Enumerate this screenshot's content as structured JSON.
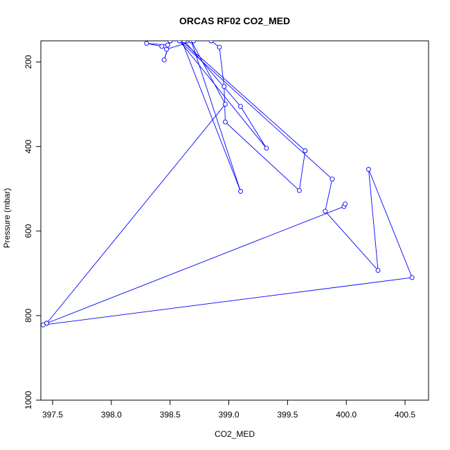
{
  "chart_data": {
    "type": "line",
    "title": "ORCAS RF02 CO2_MED",
    "xlabel": "CO2_MED",
    "ylabel": "Pressure (mbar)",
    "xlim": [
      397.4,
      400.7
    ],
    "ylim": [
      1000,
      150
    ],
    "y_reversed": true,
    "grid": false,
    "legend": "none",
    "x_ticks": [
      397.5,
      398.0,
      398.5,
      399.0,
      399.5,
      400.0,
      400.5
    ],
    "x_tick_labels": [
      "397.5",
      "398.0",
      "398.5",
      "399.0",
      "399.5",
      "400.0",
      "400.5"
    ],
    "y_ticks": [
      200,
      400,
      600,
      800,
      1000
    ],
    "y_tick_labels": [
      "200",
      "400",
      "600",
      "800",
      "1000"
    ],
    "line_color": "#0000ff",
    "marker": "open-circle",
    "series": [
      {
        "points": [
          [
            397.45,
            818
          ],
          [
            398.97,
            300
          ],
          [
            398.68,
            150
          ],
          [
            399.1,
            506
          ],
          [
            398.6,
            150
          ],
          [
            399.65,
            410
          ],
          [
            399.6,
            504
          ],
          [
            398.97,
            342
          ],
          [
            398.96,
            258
          ],
          [
            398.92,
            165
          ],
          [
            398.85,
            150
          ],
          [
            398.7,
            150
          ],
          [
            398.47,
            170
          ],
          [
            398.43,
            163
          ],
          [
            398.3,
            156
          ],
          [
            398.48,
            160
          ],
          [
            398.5,
            150
          ],
          [
            398.45,
            195
          ],
          [
            398.5,
            150
          ],
          [
            398.62,
            150
          ],
          [
            399.1,
            305
          ],
          [
            399.32,
            404
          ],
          [
            398.58,
            150
          ],
          [
            399.88,
            477
          ],
          [
            399.82,
            553
          ],
          [
            400.27,
            693
          ],
          [
            400.19,
            454
          ],
          [
            400.56,
            710
          ],
          [
            397.42,
            822
          ],
          [
            397.45,
            818
          ],
          [
            399.98,
            542
          ],
          [
            399.99,
            536
          ]
        ]
      }
    ]
  }
}
